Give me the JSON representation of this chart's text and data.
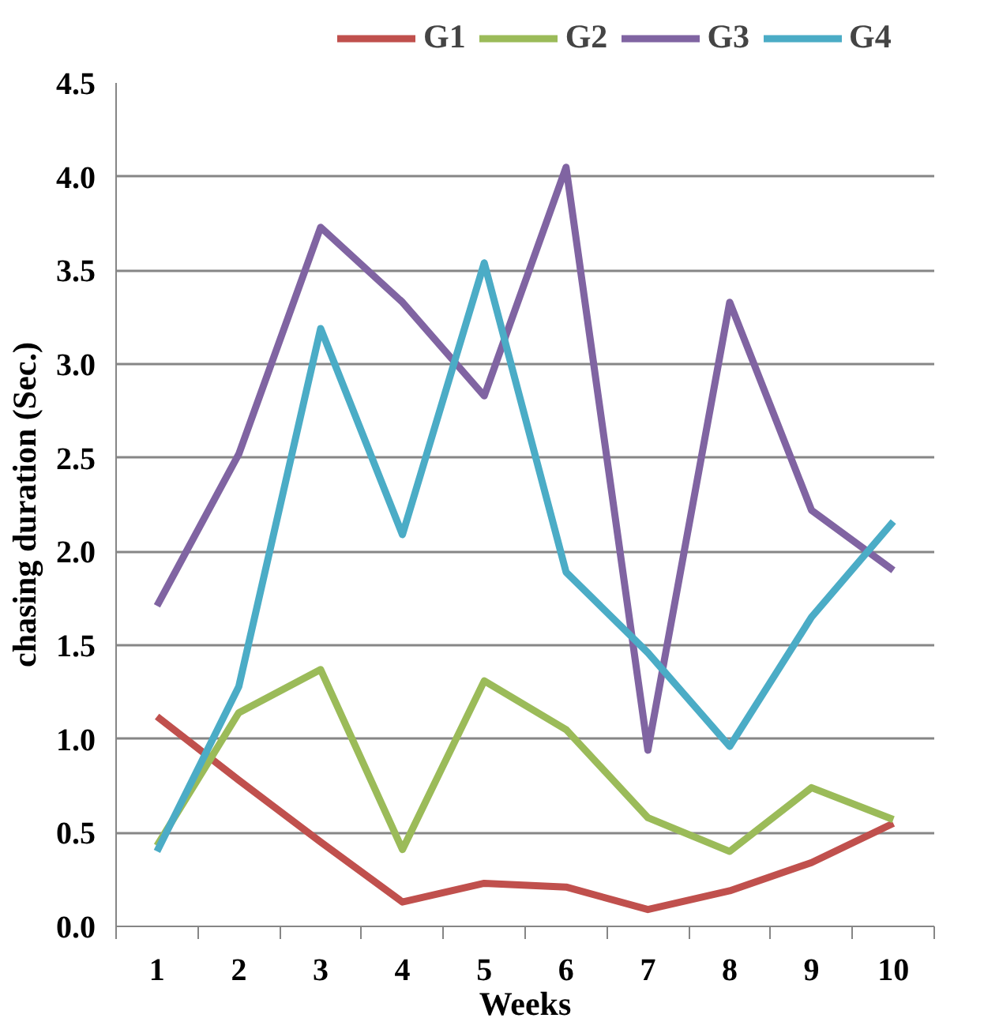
{
  "chart_data": {
    "type": "line",
    "xlabel": "Weeks",
    "ylabel": "chasing duration (Sec.)",
    "categories": [
      "1",
      "2",
      "3",
      "4",
      "5",
      "6",
      "7",
      "8",
      "9",
      "10"
    ],
    "series": [
      {
        "name": "G1",
        "color": "#c0504d",
        "values": [
          1.12,
          0.78,
          0.45,
          0.13,
          0.23,
          0.21,
          0.09,
          0.19,
          0.34,
          0.55
        ]
      },
      {
        "name": "G2",
        "color": "#9bbb59",
        "values": [
          0.43,
          1.14,
          1.37,
          0.41,
          1.31,
          1.05,
          0.58,
          0.4,
          0.74,
          0.57
        ]
      },
      {
        "name": "G3",
        "color": "#8064a2",
        "values": [
          1.71,
          2.52,
          3.73,
          3.33,
          2.83,
          4.05,
          0.94,
          3.33,
          2.22,
          1.9
        ]
      },
      {
        "name": "G4",
        "color": "#4bacc6",
        "values": [
          0.4,
          1.28,
          3.19,
          2.09,
          3.54,
          1.89,
          1.46,
          0.96,
          1.65,
          2.16
        ]
      }
    ],
    "ylim": [
      0,
      4.5
    ],
    "yticks": [
      {
        "value": 0,
        "label": "0.0"
      },
      0.5,
      {
        "value": 1,
        "label": "1.0"
      },
      1.5,
      {
        "value": 2,
        "label": "2.0"
      },
      2.5,
      {
        "value": 3,
        "label": "3.0"
      },
      3.5,
      {
        "value": 4,
        "label": "4.0"
      },
      4.5
    ],
    "grid": "y",
    "legend": "top",
    "marker": "none",
    "line_style": "solid"
  }
}
